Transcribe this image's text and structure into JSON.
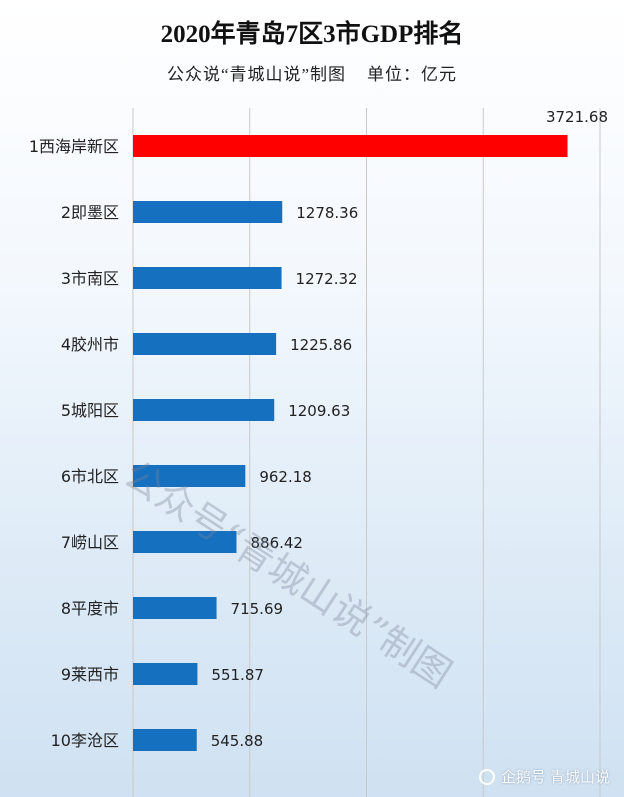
{
  "header": {
    "title": "2020年青岛7区3市GDP排名",
    "subtitle": "公众说“青城山说”制图    单位：亿元"
  },
  "watermark": "公众号“青城山说”制图",
  "footer": {
    "text": "企鹅号 青城山说",
    "icon": "chat-bubble-icon"
  },
  "colors": {
    "highlight": "#ff0000",
    "bar": "#1670c0",
    "grid": "#c9c9c9"
  },
  "chart_data": {
    "type": "bar",
    "orientation": "horizontal",
    "categories": [
      "1西海岸新区",
      "2即墨区",
      "3市南区",
      "4胶州市",
      "5城阳区",
      "6市北区",
      "7崂山区",
      "8平度市",
      "9莱西市",
      "10李沧区"
    ],
    "values": [
      3721.68,
      1278.36,
      1272.32,
      1225.86,
      1209.63,
      962.18,
      886.42,
      715.69,
      551.87,
      545.88
    ],
    "value_labels": [
      "3721.68",
      "1278.36",
      "1272.32",
      "1225.86",
      "1209.63",
      "962.18",
      "886.42",
      "715.69",
      "551.87",
      "545.88"
    ],
    "xlim": [
      0,
      4000
    ],
    "grid": true,
    "highlight_index": 0
  }
}
